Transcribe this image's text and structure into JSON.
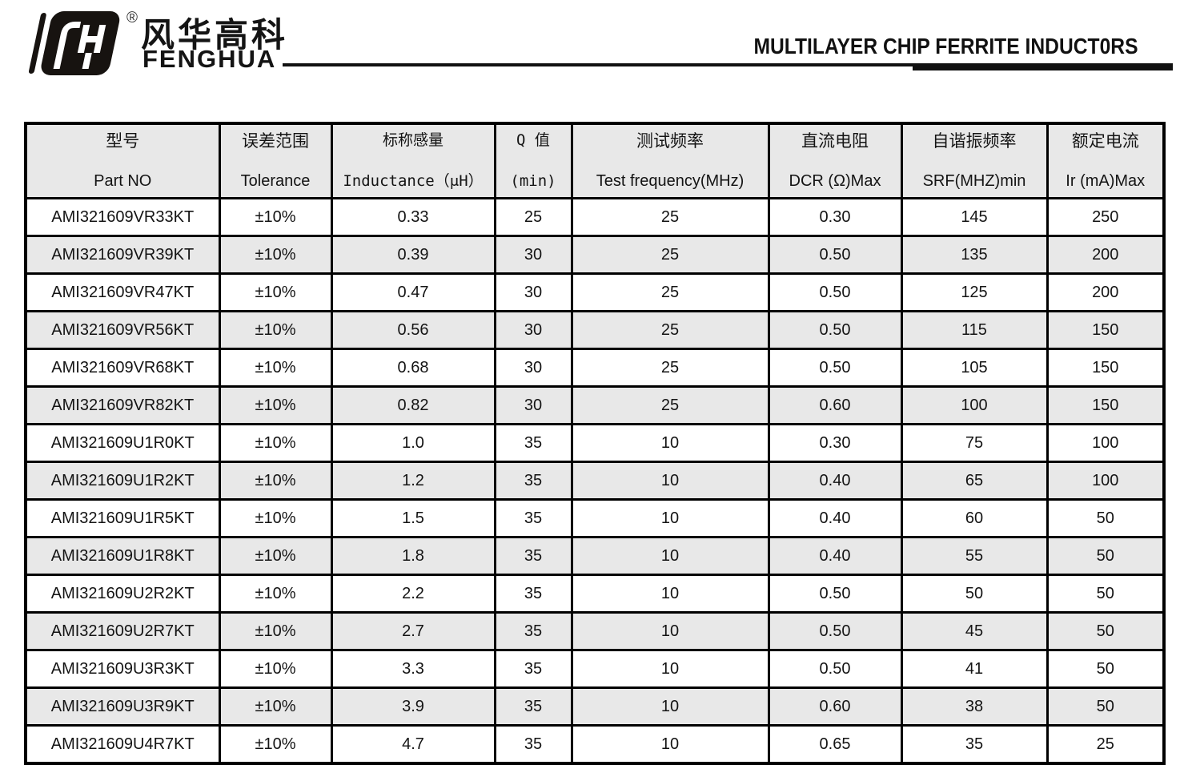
{
  "brand": {
    "name_zh": "风华高科",
    "name_en": "FENGHUA",
    "registered_mark": "®"
  },
  "header": {
    "title": "MULTILAYER CHIP FERRITE INDUCT0RS"
  },
  "colors": {
    "row_stripe": "#e8e8e8",
    "header_fill": "#e8e8e8",
    "border": "#000000",
    "text": "#141414"
  },
  "table": {
    "columns": [
      {
        "key": "part-no",
        "zh": "型号",
        "en": "Part NO",
        "mono": false
      },
      {
        "key": "tolerance",
        "zh": "误差范围",
        "en": "Tolerance",
        "mono": false
      },
      {
        "key": "inductance",
        "zh": "标称感量",
        "en": "Inductance（μH）",
        "mono": true
      },
      {
        "key": "q-min",
        "zh": "Q 值",
        "en": "(min)",
        "mono": true
      },
      {
        "key": "test-frequency",
        "zh": "测试频率",
        "en": "Test frequency(MHz)",
        "mono": false
      },
      {
        "key": "dcr",
        "zh": "直流电阻",
        "en": "DCR (Ω)Max",
        "mono": false
      },
      {
        "key": "srf",
        "zh": "自谐振频率",
        "en": "SRF(MHZ)min",
        "mono": false
      },
      {
        "key": "rated-current",
        "zh": "额定电流",
        "en": "Ir (mA)Max",
        "mono": false
      }
    ],
    "rows": [
      [
        "AMI321609VR33KT",
        "±10%",
        "0.33",
        "25",
        "25",
        "0.30",
        "145",
        "250"
      ],
      [
        "AMI321609VR39KT",
        "±10%",
        "0.39",
        "30",
        "25",
        "0.50",
        "135",
        "200"
      ],
      [
        "AMI321609VR47KT",
        "±10%",
        "0.47",
        "30",
        "25",
        "0.50",
        "125",
        "200"
      ],
      [
        "AMI321609VR56KT",
        "±10%",
        "0.56",
        "30",
        "25",
        "0.50",
        "115",
        "150"
      ],
      [
        "AMI321609VR68KT",
        "±10%",
        "0.68",
        "30",
        "25",
        "0.50",
        "105",
        "150"
      ],
      [
        "AMI321609VR82KT",
        "±10%",
        "0.82",
        "30",
        "25",
        "0.60",
        "100",
        "150"
      ],
      [
        "AMI321609U1R0KT",
        "±10%",
        "1.0",
        "35",
        "10",
        "0.30",
        "75",
        "100"
      ],
      [
        "AMI321609U1R2KT",
        "±10%",
        "1.2",
        "35",
        "10",
        "0.40",
        "65",
        "100"
      ],
      [
        "AMI321609U1R5KT",
        "±10%",
        "1.5",
        "35",
        "10",
        "0.40",
        "60",
        "50"
      ],
      [
        "AMI321609U1R8KT",
        "±10%",
        "1.8",
        "35",
        "10",
        "0.40",
        "55",
        "50"
      ],
      [
        "AMI321609U2R2KT",
        "±10%",
        "2.2",
        "35",
        "10",
        "0.50",
        "50",
        "50"
      ],
      [
        "AMI321609U2R7KT",
        "±10%",
        "2.7",
        "35",
        "10",
        "0.50",
        "45",
        "50"
      ],
      [
        "AMI321609U3R3KT",
        "±10%",
        "3.3",
        "35",
        "10",
        "0.50",
        "41",
        "50"
      ],
      [
        "AMI321609U3R9KT",
        "±10%",
        "3.9",
        "35",
        "10",
        "0.60",
        "38",
        "50"
      ],
      [
        "AMI321609U4R7KT",
        "±10%",
        "4.7",
        "35",
        "10",
        "0.65",
        "35",
        "25"
      ]
    ]
  }
}
